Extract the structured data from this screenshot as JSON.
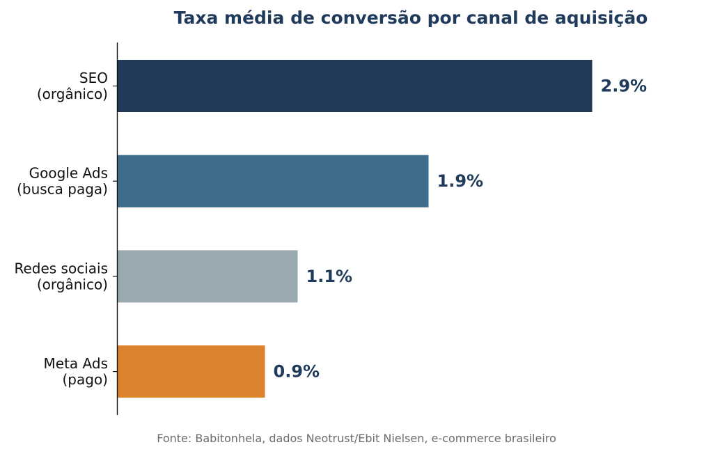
{
  "chart_data": {
    "type": "bar",
    "orientation": "horizontal",
    "title": "Taxa média de conversão por canal de aquisição",
    "categories": [
      [
        "SEO",
        "(orgânico)"
      ],
      [
        "Google Ads",
        "(busca paga)"
      ],
      [
        "Redes sociais",
        "(orgânico)"
      ],
      [
        "Meta Ads",
        "(pago)"
      ]
    ],
    "values": [
      2.9,
      1.9,
      1.1,
      0.9
    ],
    "value_labels": [
      "2.9%",
      "1.9%",
      "1.1%",
      "0.9%"
    ],
    "colors": [
      "#203a57",
      "#3e6d8c",
      "#9aa8b2",
      "#db822c"
    ],
    "xlim": [
      0,
      3.6
    ],
    "xlabel": "",
    "ylabel": "",
    "grid": false,
    "legend": "none"
  },
  "footer": {
    "source": "Fonte: Babitonhela, dados Neotrust/Ebit Nielsen, e-commerce brasileiro"
  }
}
